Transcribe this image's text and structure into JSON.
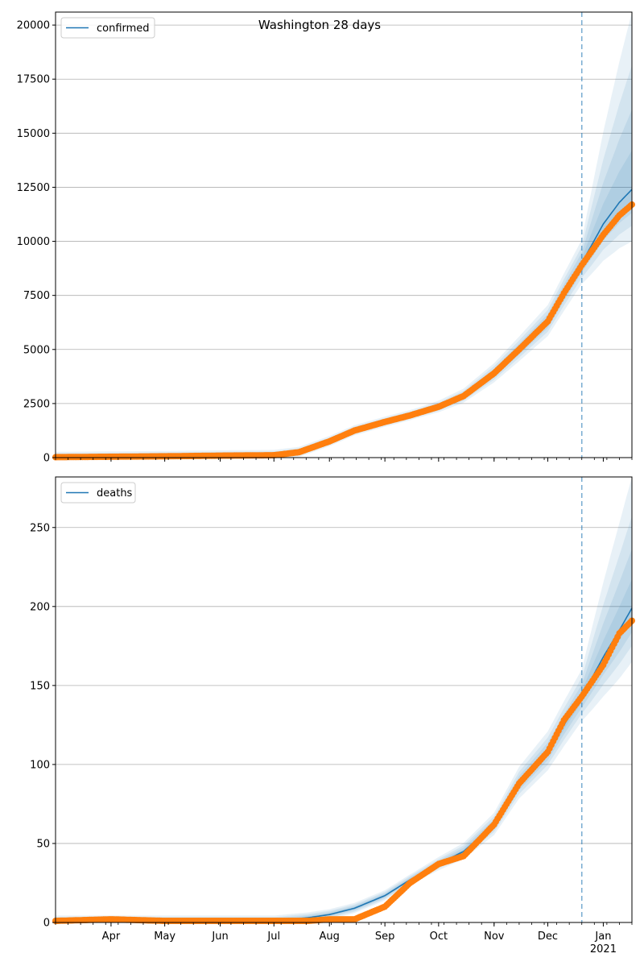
{
  "title": "Washington 28 days",
  "colors": {
    "fit_line": "#1f77b4",
    "band": "#1f77b4",
    "observed": "#ff7f0e",
    "grid": "#b0b0b0",
    "forecast_marker": "#1f77b4"
  },
  "chart_data": [
    {
      "type": "line",
      "panel": "top",
      "legend": "top-left",
      "grid": "horizontal",
      "series": [
        {
          "name": "confirmed",
          "kind": "model-fit",
          "y": "fit"
        },
        {
          "kind": "observed-points",
          "y": "obs"
        }
      ],
      "xlim": [
        "2020-03-01",
        "2021-01-17"
      ],
      "ylim": [
        0,
        20600
      ],
      "yticks": [
        0,
        2500,
        5000,
        7500,
        10000,
        12500,
        15000,
        17500,
        20000
      ],
      "forecast_start": "2020-12-20",
      "points": [
        {
          "x": "2020-03-01",
          "fit": 20,
          "obs": 20
        },
        {
          "x": "2020-04-01",
          "fit": 40,
          "obs": 40
        },
        {
          "x": "2020-05-01",
          "fit": 60,
          "obs": 60
        },
        {
          "x": "2020-06-01",
          "fit": 90,
          "obs": 90
        },
        {
          "x": "2020-07-01",
          "fit": 110,
          "obs": 110
        },
        {
          "x": "2020-07-15",
          "fit": 250,
          "obs": 250
        },
        {
          "x": "2020-08-01",
          "fit": 750,
          "obs": 750
        },
        {
          "x": "2020-08-15",
          "fit": 1250,
          "obs": 1250
        },
        {
          "x": "2020-09-01",
          "fit": 1650,
          "obs": 1650
        },
        {
          "x": "2020-09-15",
          "fit": 1950,
          "obs": 1950
        },
        {
          "x": "2020-10-01",
          "fit": 2350,
          "obs": 2350
        },
        {
          "x": "2020-10-15",
          "fit": 2850,
          "obs": 2850
        },
        {
          "x": "2020-11-01",
          "fit": 3900,
          "obs": 3900
        },
        {
          "x": "2020-11-15",
          "fit": 5000,
          "obs": 5000
        },
        {
          "x": "2020-12-01",
          "fit": 6300,
          "obs": 6300
        },
        {
          "x": "2020-12-10",
          "fit": 7600,
          "obs": 7600
        },
        {
          "x": "2020-12-20",
          "fit": 9000,
          "obs": 8900
        },
        {
          "x": "2021-01-01",
          "fit": 10800,
          "obs": 10300
        },
        {
          "x": "2021-01-10",
          "fit": 11800,
          "obs": 11200
        },
        {
          "x": "2021-01-17",
          "fit": 12400,
          "obs": 11700
        }
      ],
      "band_end_spread": [
        1.0,
        0.1
      ],
      "band_end_values": {
        "low": 10000,
        "high": 20600
      }
    },
    {
      "type": "line",
      "panel": "bottom",
      "legend": "top-left",
      "grid": "horizontal",
      "series": [
        {
          "name": "deaths",
          "kind": "model-fit",
          "y": "fit"
        },
        {
          "kind": "observed-points",
          "y": "obs"
        }
      ],
      "xlim": [
        "2020-03-01",
        "2021-01-17"
      ],
      "ylim": [
        0,
        282
      ],
      "yticks": [
        0,
        50,
        100,
        150,
        200,
        250
      ],
      "forecast_start": "2020-12-20",
      "points": [
        {
          "x": "2020-03-01",
          "fit": 1,
          "obs": 1
        },
        {
          "x": "2020-04-01",
          "fit": 1,
          "obs": 2
        },
        {
          "x": "2020-05-01",
          "fit": 1,
          "obs": 1
        },
        {
          "x": "2020-06-01",
          "fit": 1,
          "obs": 1
        },
        {
          "x": "2020-07-01",
          "fit": 1,
          "obs": 1
        },
        {
          "x": "2020-07-20",
          "fit": 3,
          "obs": 1
        },
        {
          "x": "2020-08-01",
          "fit": 5,
          "obs": 2
        },
        {
          "x": "2020-08-15",
          "fit": 9,
          "obs": 2
        },
        {
          "x": "2020-09-01",
          "fit": 17,
          "obs": 10
        },
        {
          "x": "2020-09-15",
          "fit": 27,
          "obs": 25
        },
        {
          "x": "2020-10-01",
          "fit": 37,
          "obs": 37
        },
        {
          "x": "2020-10-15",
          "fit": 45,
          "obs": 42
        },
        {
          "x": "2020-11-01",
          "fit": 62,
          "obs": 62
        },
        {
          "x": "2020-11-15",
          "fit": 88,
          "obs": 88
        },
        {
          "x": "2020-12-01",
          "fit": 108,
          "obs": 108
        },
        {
          "x": "2020-12-10",
          "fit": 125,
          "obs": 128
        },
        {
          "x": "2020-12-20",
          "fit": 143,
          "obs": 143
        },
        {
          "x": "2021-01-01",
          "fit": 168,
          "obs": 163
        },
        {
          "x": "2021-01-10",
          "fit": 185,
          "obs": 183
        },
        {
          "x": "2021-01-17",
          "fit": 199,
          "obs": 191
        }
      ],
      "band_end_values": {
        "low": 165,
        "high": 282
      }
    }
  ],
  "x_tick_labels": [
    {
      "date": "2020-04-01",
      "label": "Apr"
    },
    {
      "date": "2020-05-01",
      "label": "May"
    },
    {
      "date": "2020-06-01",
      "label": "Jun"
    },
    {
      "date": "2020-07-01",
      "label": "Jul"
    },
    {
      "date": "2020-08-01",
      "label": "Aug"
    },
    {
      "date": "2020-09-01",
      "label": "Sep"
    },
    {
      "date": "2020-10-01",
      "label": "Oct"
    },
    {
      "date": "2020-11-01",
      "label": "Nov"
    },
    {
      "date": "2020-12-01",
      "label": "Dec"
    },
    {
      "date": "2021-01-01",
      "label": "Jan",
      "sublabel": "2021"
    }
  ]
}
